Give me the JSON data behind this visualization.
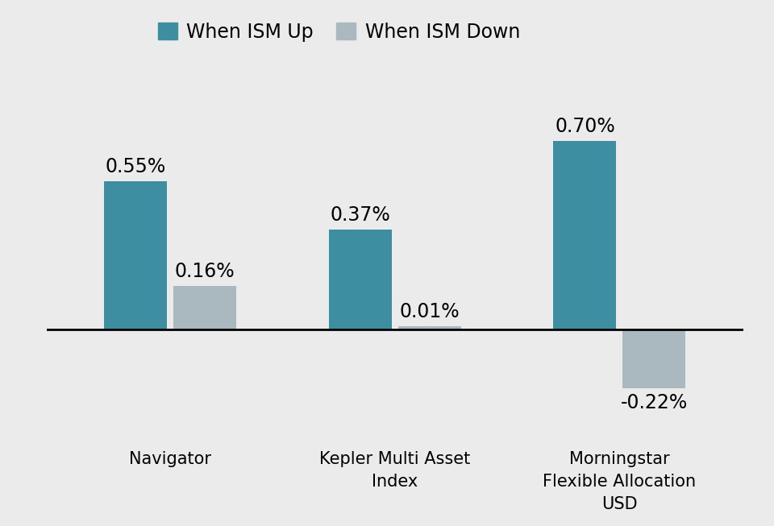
{
  "categories": [
    "Navigator",
    "Kepler Multi Asset\nIndex",
    "Morningstar\nFlexible Allocation\nUSD"
  ],
  "ism_up": [
    0.55,
    0.37,
    0.7
  ],
  "ism_down": [
    0.16,
    0.01,
    -0.22
  ],
  "ism_up_labels": [
    "0.55%",
    "0.37%",
    "0.70%"
  ],
  "ism_down_labels": [
    "0.16%",
    "0.01%",
    "-0.22%"
  ],
  "color_up": "#3d8ea0",
  "color_down": "#aab8c0",
  "background_color": "#ebebeb",
  "legend_up": "When ISM Up",
  "legend_down": "When ISM Down",
  "bar_width": 0.28,
  "ylim": [
    -0.38,
    0.95
  ],
  "label_fontsize": 17,
  "tick_fontsize": 15,
  "legend_fontsize": 17
}
